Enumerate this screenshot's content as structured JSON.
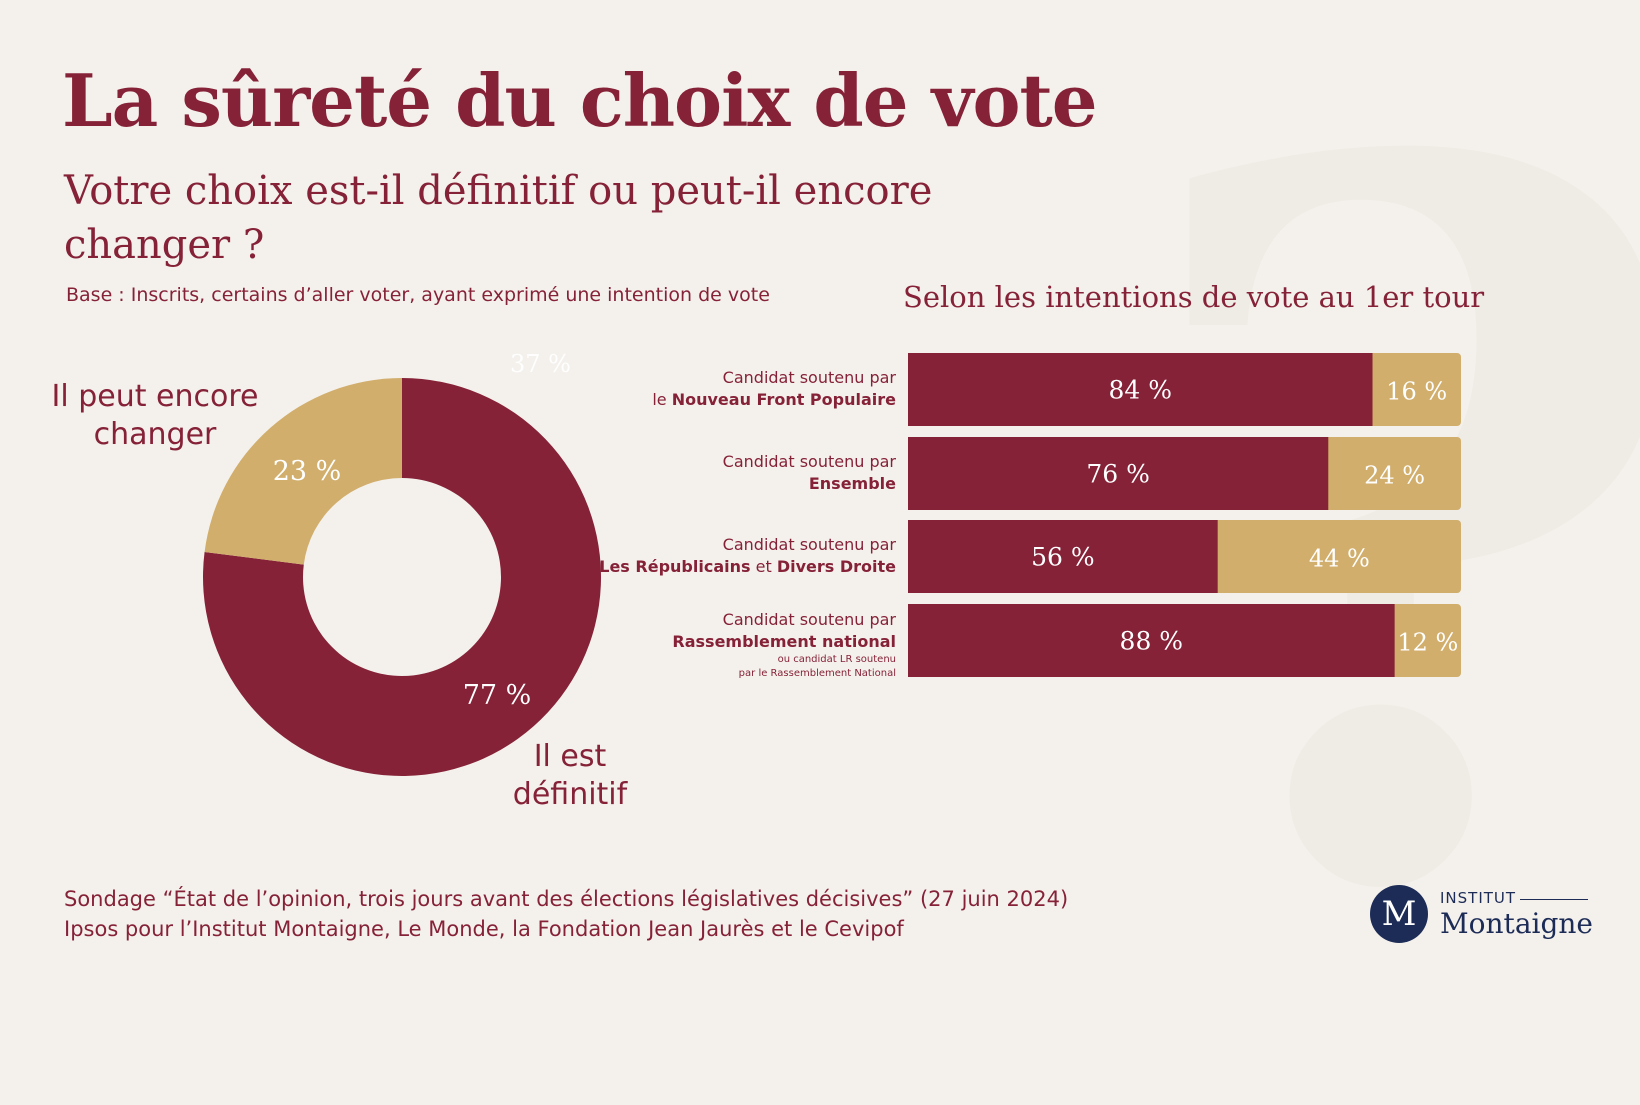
{
  "background_mark": "?",
  "title": "La sûreté du choix de vote",
  "subtitle": "Votre choix est-il définitif ou peut-il encore changer ?",
  "base": "Base : Inscrits, certains d’aller voter, ayant exprimé une intention de vote",
  "right_title": "Selon les intentions de vote au 1er tour",
  "donut_labels": {
    "change": "Il peut encore changer",
    "definitive": "Il est définitif",
    "ghost": "37 %"
  },
  "colors": {
    "definitive": "#862238",
    "change": "#d1ae6c",
    "background": "#f4f1ec",
    "logo": "#1d2c57"
  },
  "chart_data": [
    {
      "type": "pie",
      "variant": "donut",
      "categories": [
        "Il est définitif",
        "Il peut encore changer"
      ],
      "values": [
        77,
        23
      ],
      "value_labels": [
        "77 %",
        "23 %"
      ]
    },
    {
      "type": "bar",
      "orientation": "horizontal",
      "stacked": true,
      "title": "Selon les intentions de vote au 1er tour",
      "categories": [
        {
          "line1": "Candidat soutenu par",
          "prefix": "le ",
          "bold": "Nouveau Front Populaire",
          "connector": "",
          "bold2": "",
          "note1": "",
          "note2": ""
        },
        {
          "line1": "Candidat soutenu par",
          "prefix": "",
          "bold": "Ensemble",
          "connector": "",
          "bold2": "",
          "note1": "",
          "note2": ""
        },
        {
          "line1": "Candidat soutenu par",
          "prefix": "",
          "bold": "Les Républicains",
          "connector": " et ",
          "bold2": "Divers Droite",
          "note1": "",
          "note2": ""
        },
        {
          "line1": "Candidat soutenu par",
          "prefix": "",
          "bold": "Rassemblement national",
          "connector": "",
          "bold2": "",
          "note1": "ou candidat LR soutenu",
          "note2": "par le Rassemblement National"
        }
      ],
      "series": [
        {
          "name": "Il est définitif",
          "values": [
            84,
            76,
            56,
            88
          ],
          "labels": [
            "84 %",
            "76 %",
            "56 %",
            "88 %"
          ]
        },
        {
          "name": "Il peut encore changer",
          "values": [
            16,
            24,
            44,
            12
          ],
          "labels": [
            "16 %",
            "24 %",
            "44 %",
            "12 %"
          ]
        }
      ],
      "xlim": [
        0,
        100
      ]
    }
  ],
  "footer": {
    "line1": "Sondage “État de l’opinion, trois jours avant des élections législatives décisives” (27 juin 2024)",
    "line2": "Ipsos pour l’Institut Montaigne, Le Monde, la Fondation Jean Jaurès et le Cevipof"
  },
  "logo": {
    "letter": "M",
    "line1": "INSTITUT",
    "line2": "Montaigne"
  }
}
